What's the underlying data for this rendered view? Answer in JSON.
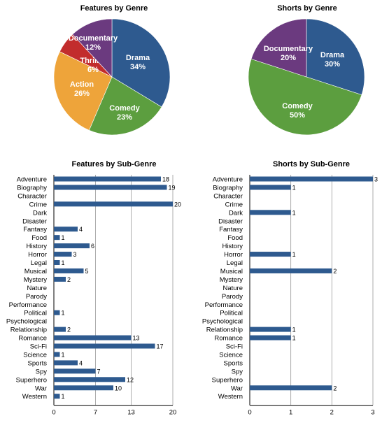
{
  "chart_data": [
    {
      "type": "pie",
      "title": "Features by Genre",
      "slices": [
        {
          "label": "Drama",
          "value": 34,
          "color": "#2e5a8f"
        },
        {
          "label": "Comedy",
          "value": 23,
          "color": "#5c9e3f"
        },
        {
          "label": "Action",
          "value": 26,
          "color": "#eea43a"
        },
        {
          "label": "Thriller",
          "value": 6,
          "color": "#c22d2d"
        },
        {
          "label": "Documentary",
          "value": 12,
          "color": "#6b3a7f"
        }
      ]
    },
    {
      "type": "pie",
      "title": "Shorts by Genre",
      "slices": [
        {
          "label": "Drama",
          "value": 30,
          "color": "#2e5a8f"
        },
        {
          "label": "Comedy",
          "value": 50,
          "color": "#5c9e3f"
        },
        {
          "label": "Documentary",
          "value": 20,
          "color": "#6b3a7f"
        }
      ]
    },
    {
      "type": "bar",
      "orientation": "horizontal",
      "title": "Features by Sub-Genre",
      "categories": [
        "Adventure",
        "Biography",
        "Character",
        "Crime",
        "Dark",
        "Disaster",
        "Fantasy",
        "Food",
        "History",
        "Horror",
        "Legal",
        "Musical",
        "Mystery",
        "Nature",
        "Parody",
        "Performance",
        "Political",
        "Psychological",
        "Relationship",
        "Romance",
        "Sci-Fi",
        "Science",
        "Sports",
        "Spy",
        "Superhero",
        "War",
        "Western"
      ],
      "values": [
        18,
        19,
        null,
        20,
        null,
        null,
        4,
        1,
        6,
        3,
        1,
        5,
        2,
        null,
        null,
        null,
        1,
        null,
        2,
        13,
        17,
        1,
        4,
        7,
        12,
        10,
        1
      ],
      "xlim": [
        0,
        20
      ],
      "xticks": [
        0,
        7,
        13,
        20
      ],
      "grid": true,
      "color": "#2e5a8f"
    },
    {
      "type": "bar",
      "orientation": "horizontal",
      "title": "Shorts by Sub-Genre",
      "categories": [
        "Adventure",
        "Biography",
        "Character",
        "Crime",
        "Dark",
        "Disaster",
        "Fantasy",
        "Food",
        "History",
        "Horror",
        "Legal",
        "Musical",
        "Mystery",
        "Nature",
        "Parody",
        "Performance",
        "Political",
        "Psychological",
        "Relationship",
        "Romance",
        "Sci-Fi",
        "Science",
        "Sports",
        "Spy",
        "Superhero",
        "War",
        "Western"
      ],
      "values": [
        3,
        1,
        null,
        null,
        1,
        null,
        null,
        null,
        null,
        1,
        null,
        2,
        null,
        null,
        null,
        null,
        null,
        null,
        1,
        1,
        null,
        null,
        null,
        null,
        null,
        2,
        null
      ],
      "xlim": [
        0,
        3
      ],
      "xticks": [
        0,
        1,
        2,
        3
      ],
      "grid": true,
      "color": "#2e5a8f"
    }
  ]
}
